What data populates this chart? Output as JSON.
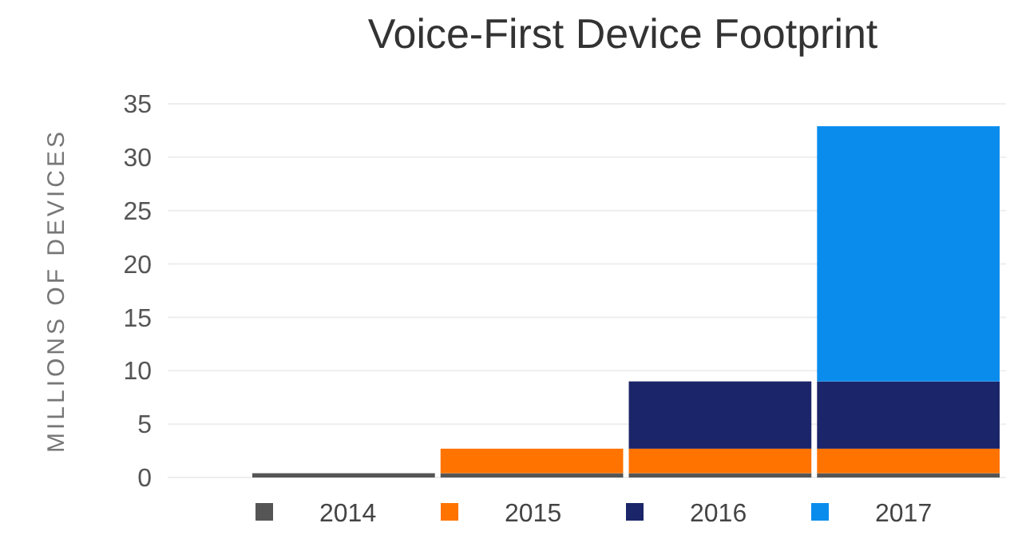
{
  "chart_data": {
    "type": "bar",
    "title": "Voice-First Device Footprint",
    "ylabel": "MILLIONS OF DEVICES",
    "categories": [
      null,
      null,
      null,
      null
    ],
    "stacked": true,
    "series": [
      {
        "name": "2014",
        "color": "#555555",
        "values": [
          0.4,
          0.4,
          0.4,
          0.4
        ]
      },
      {
        "name": "2015",
        "color": "#ff7300",
        "values": [
          null,
          2.3,
          2.3,
          2.3
        ]
      },
      {
        "name": "2016",
        "color": "#1b2569",
        "values": [
          null,
          null,
          6.3,
          6.3
        ]
      },
      {
        "name": "2017",
        "color": "#0a8ced",
        "values": [
          null,
          null,
          null,
          23.9
        ]
      }
    ],
    "ylim": [
      0,
      35
    ],
    "yticks": [
      0,
      5,
      10,
      15,
      20,
      25,
      30,
      35
    ],
    "grid": "y",
    "legend": "bottom"
  }
}
